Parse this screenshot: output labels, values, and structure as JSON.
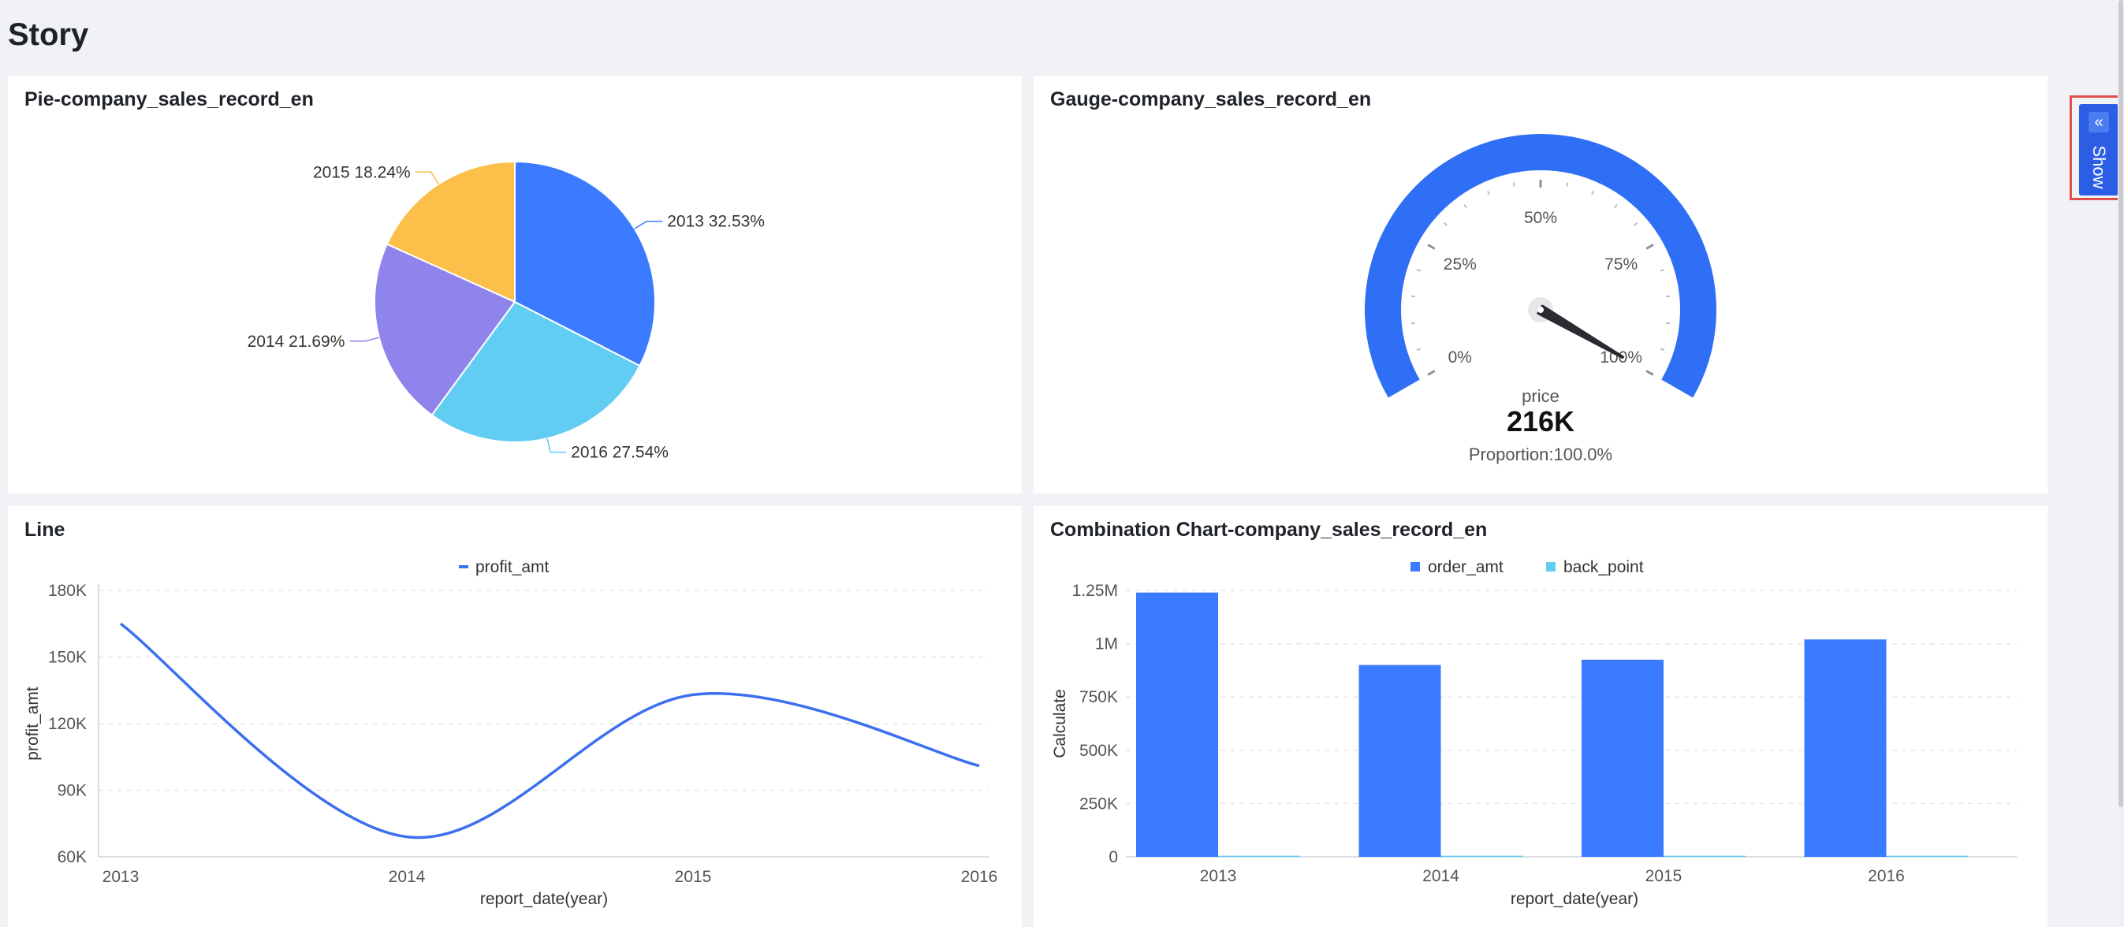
{
  "page": {
    "title": "Story"
  },
  "pie": {
    "title": "Pie-company_sales_record_en",
    "colors": [
      "#3b7bff",
      "#62cdf3",
      "#8e84ec",
      "#fbbf4a"
    ]
  },
  "gauge": {
    "title": "Gauge-company_sales_record_en",
    "ticks": [
      "0%",
      "25%",
      "50%",
      "75%",
      "100%"
    ],
    "label": "price",
    "value_text": "216K",
    "proportion_text": "Proportion:100.0%",
    "color": "#2f6ff5"
  },
  "line": {
    "title": "Line",
    "color": "#3b6ff0"
  },
  "combo": {
    "title": "Combination Chart-company_sales_record_en",
    "colors": [
      "#3b7bff",
      "#62cdf3"
    ]
  },
  "sidebar": {
    "show_label": "Show",
    "toggle_icon": "double-chevron-left-icon"
  },
  "chart_data": [
    {
      "type": "pie",
      "title": "Pie-company_sales_record_en",
      "slices": [
        {
          "label": "2013",
          "value": 32.53,
          "text": "2013 32.53%"
        },
        {
          "label": "2016",
          "value": 27.54,
          "text": "2016 27.54%"
        },
        {
          "label": "2014",
          "value": 21.69,
          "text": "2014 21.69%"
        },
        {
          "label": "2015",
          "value": 18.24,
          "text": "2015 18.24%"
        }
      ]
    },
    {
      "type": "gauge",
      "title": "Gauge-company_sales_record_en",
      "series_label": "price",
      "value": "216K",
      "proportion": 1.0,
      "axis_labels": [
        "0%",
        "25%",
        "50%",
        "75%",
        "100%"
      ]
    },
    {
      "type": "line",
      "title": "Line",
      "x": [
        "2013",
        "2014",
        "2015",
        "2016"
      ],
      "series": [
        {
          "name": "profit_amt",
          "values": [
            165000,
            69000,
            133000,
            101000
          ]
        }
      ],
      "xlabel": "report_date(year)",
      "ylabel": "profit_amt",
      "yticks": [
        "60K",
        "90K",
        "120K",
        "150K",
        "180K"
      ],
      "ylim": [
        60000,
        180000
      ],
      "grid": true,
      "legend": "top-center"
    },
    {
      "type": "bar",
      "title": "Combination Chart-company_sales_record_en",
      "categories": [
        "2013",
        "2014",
        "2015",
        "2016"
      ],
      "series": [
        {
          "name": "order_amt",
          "values": [
            1240000,
            900000,
            925000,
            1020000
          ]
        },
        {
          "name": "back_point",
          "values": [
            5000,
            5000,
            5000,
            5000
          ]
        }
      ],
      "xlabel": "report_date(year)",
      "ylabel": "Calculate",
      "yticks": [
        "0",
        "250K",
        "500K",
        "750K",
        "1M",
        "1.25M"
      ],
      "ylim": [
        0,
        1250000
      ],
      "grid": true,
      "legend": "top-center"
    }
  ]
}
